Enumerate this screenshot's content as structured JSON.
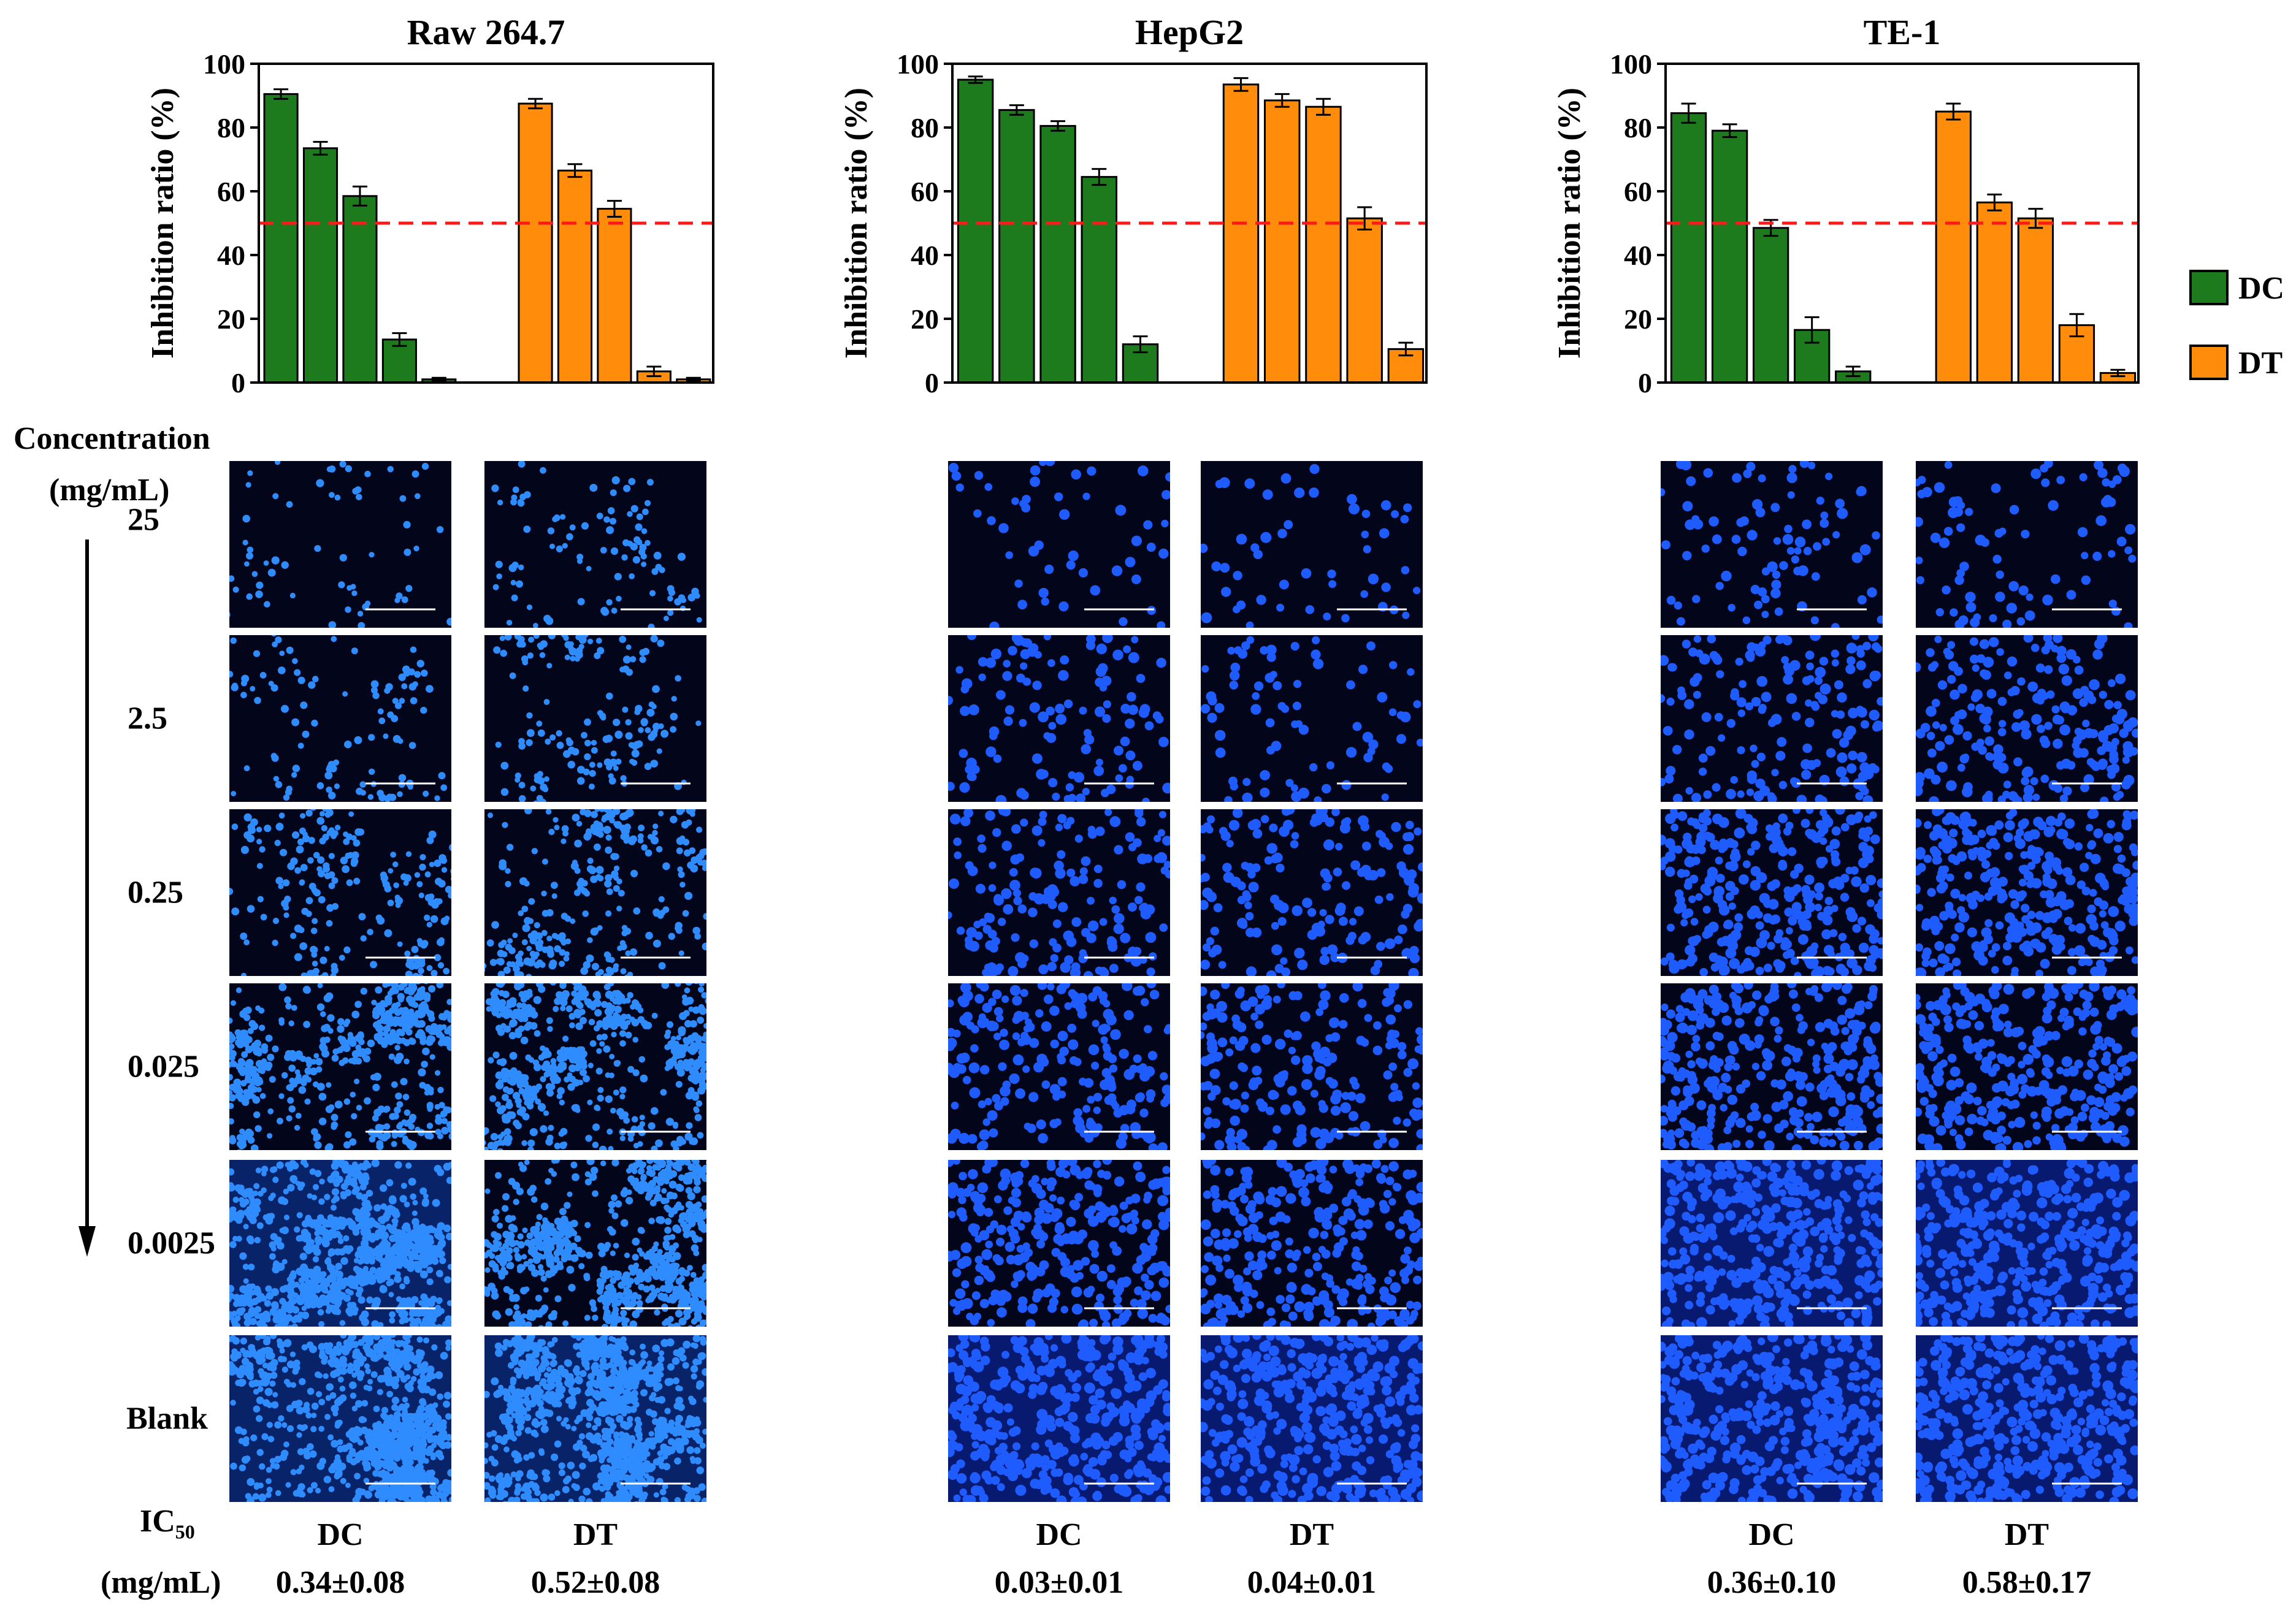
{
  "colors": {
    "DC": "#1d7a1d",
    "DT": "#ff8c0a",
    "threshold": "#ff1a1a",
    "axis": "#000000"
  },
  "legend": [
    {
      "key": "DC",
      "label": "DC"
    },
    {
      "key": "DT",
      "label": "DT"
    }
  ],
  "chart_data": [
    {
      "type": "bar",
      "title": "Raw 264.7",
      "ylabel": "Inhibition ratio (%)",
      "ylim": [
        0,
        100
      ],
      "yticks": [
        "0",
        "20",
        "40",
        "60",
        "80",
        "100"
      ],
      "threshold": 50,
      "series": [
        {
          "name": "DC",
          "values": [
            90.5,
            73.5,
            58.5,
            13.5,
            1.0
          ],
          "errors": [
            1.5,
            2.0,
            3.0,
            2.0,
            0.5
          ]
        },
        {
          "name": "DT",
          "values": [
            87.5,
            66.5,
            54.5,
            3.5,
            1.0
          ],
          "errors": [
            1.5,
            2.0,
            2.5,
            1.5,
            0.5
          ]
        }
      ]
    },
    {
      "type": "bar",
      "title": "HepG2",
      "ylabel": "Inhibition ratio (%)",
      "ylim": [
        0,
        100
      ],
      "yticks": [
        "0",
        "20",
        "40",
        "60",
        "80",
        "100"
      ],
      "threshold": 50,
      "series": [
        {
          "name": "DC",
          "values": [
            95.0,
            85.5,
            80.5,
            64.5,
            12.0
          ],
          "errors": [
            1.0,
            1.5,
            1.5,
            2.5,
            2.5
          ]
        },
        {
          "name": "DT",
          "values": [
            93.5,
            88.5,
            86.5,
            51.5,
            10.5
          ],
          "errors": [
            2.0,
            2.0,
            2.5,
            3.5,
            2.0
          ]
        }
      ]
    },
    {
      "type": "bar",
      "title": "TE-1",
      "ylabel": "Inhibition ratio (%)",
      "ylim": [
        0,
        100
      ],
      "yticks": [
        "0",
        "20",
        "40",
        "60",
        "80",
        "100"
      ],
      "threshold": 50,
      "series": [
        {
          "name": "DC",
          "values": [
            84.5,
            79.0,
            48.5,
            16.5,
            3.5
          ],
          "errors": [
            3.0,
            2.0,
            2.5,
            4.0,
            1.5
          ]
        },
        {
          "name": "DT",
          "values": [
            85.0,
            56.5,
            51.5,
            18.0,
            3.0
          ],
          "errors": [
            2.5,
            2.5,
            3.0,
            3.5,
            1.0
          ]
        }
      ]
    }
  ],
  "microscopy": {
    "header_line1": "Concentration",
    "header_line2": "(mg/mL)",
    "rows": [
      "25",
      "2.5",
      "0.25",
      "0.025",
      "0.0025",
      "Blank"
    ],
    "ic50": {
      "label_main": "IC",
      "label_sub": "50",
      "unit": "(mg/mL)",
      "columns": [
        {
          "name": "DC",
          "value": "0.34±0.08"
        },
        {
          "name": "DT",
          "value": "0.52±0.08"
        },
        {
          "name": "DC",
          "value": "0.03±0.01"
        },
        {
          "name": "DT",
          "value": "0.04±0.01"
        },
        {
          "name": "DC",
          "value": "0.36±0.10"
        },
        {
          "name": "DT",
          "value": "0.58±0.17"
        }
      ]
    },
    "cell_density": [
      [
        0.06,
        0.1,
        0.2,
        0.55,
        0.9,
        1.0
      ],
      [
        0.09,
        0.15,
        0.28,
        0.6,
        0.72,
        1.0
      ],
      [
        0.12,
        0.28,
        0.4,
        0.5,
        0.7,
        0.95
      ],
      [
        0.12,
        0.18,
        0.38,
        0.48,
        0.7,
        0.9
      ],
      [
        0.2,
        0.4,
        0.75,
        0.8,
        0.9,
        1.0
      ],
      [
        0.2,
        0.5,
        0.78,
        0.8,
        0.9,
        1.0
      ]
    ]
  }
}
